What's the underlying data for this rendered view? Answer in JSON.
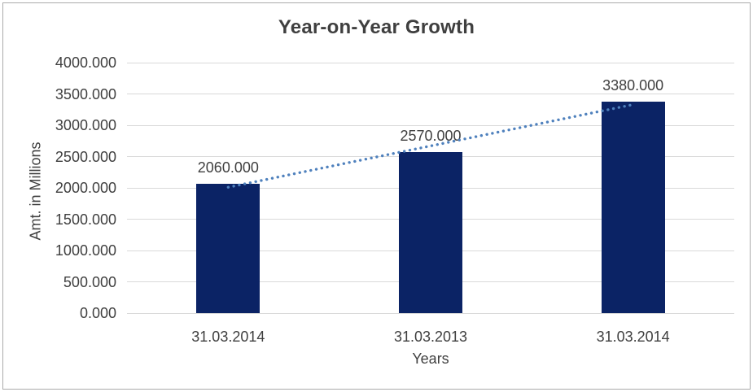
{
  "chart_data": {
    "type": "bar",
    "title": "Year-on-Year Growth",
    "xlabel": "Years",
    "ylabel": "Amt. in Millions",
    "categories": [
      "31.03.2014",
      "31.03.2013",
      "31.03.2014"
    ],
    "values": [
      2060,
      2570,
      3380
    ],
    "data_labels": [
      "2060.000",
      "2570.000",
      "3380.000"
    ],
    "ylim": [
      0,
      4000
    ],
    "ystep": 500,
    "ytick_labels": [
      "0.000",
      "500.000",
      "1000.000",
      "1500.000",
      "2000.000",
      "2500.000",
      "3000.000",
      "3500.000",
      "4000.000"
    ],
    "grid": true,
    "legend": false,
    "trendline": {
      "type": "linear",
      "style": "dotted",
      "start_value": 2010,
      "end_value": 3330
    },
    "colors": {
      "bar": "#0b2365",
      "trendline": "#4f81bd",
      "gridline": "#d9d9d9",
      "axis_line": "#d9d9d9",
      "text": "#3f3f3f",
      "chart_border": "#ababab",
      "background": "#ffffff"
    }
  }
}
